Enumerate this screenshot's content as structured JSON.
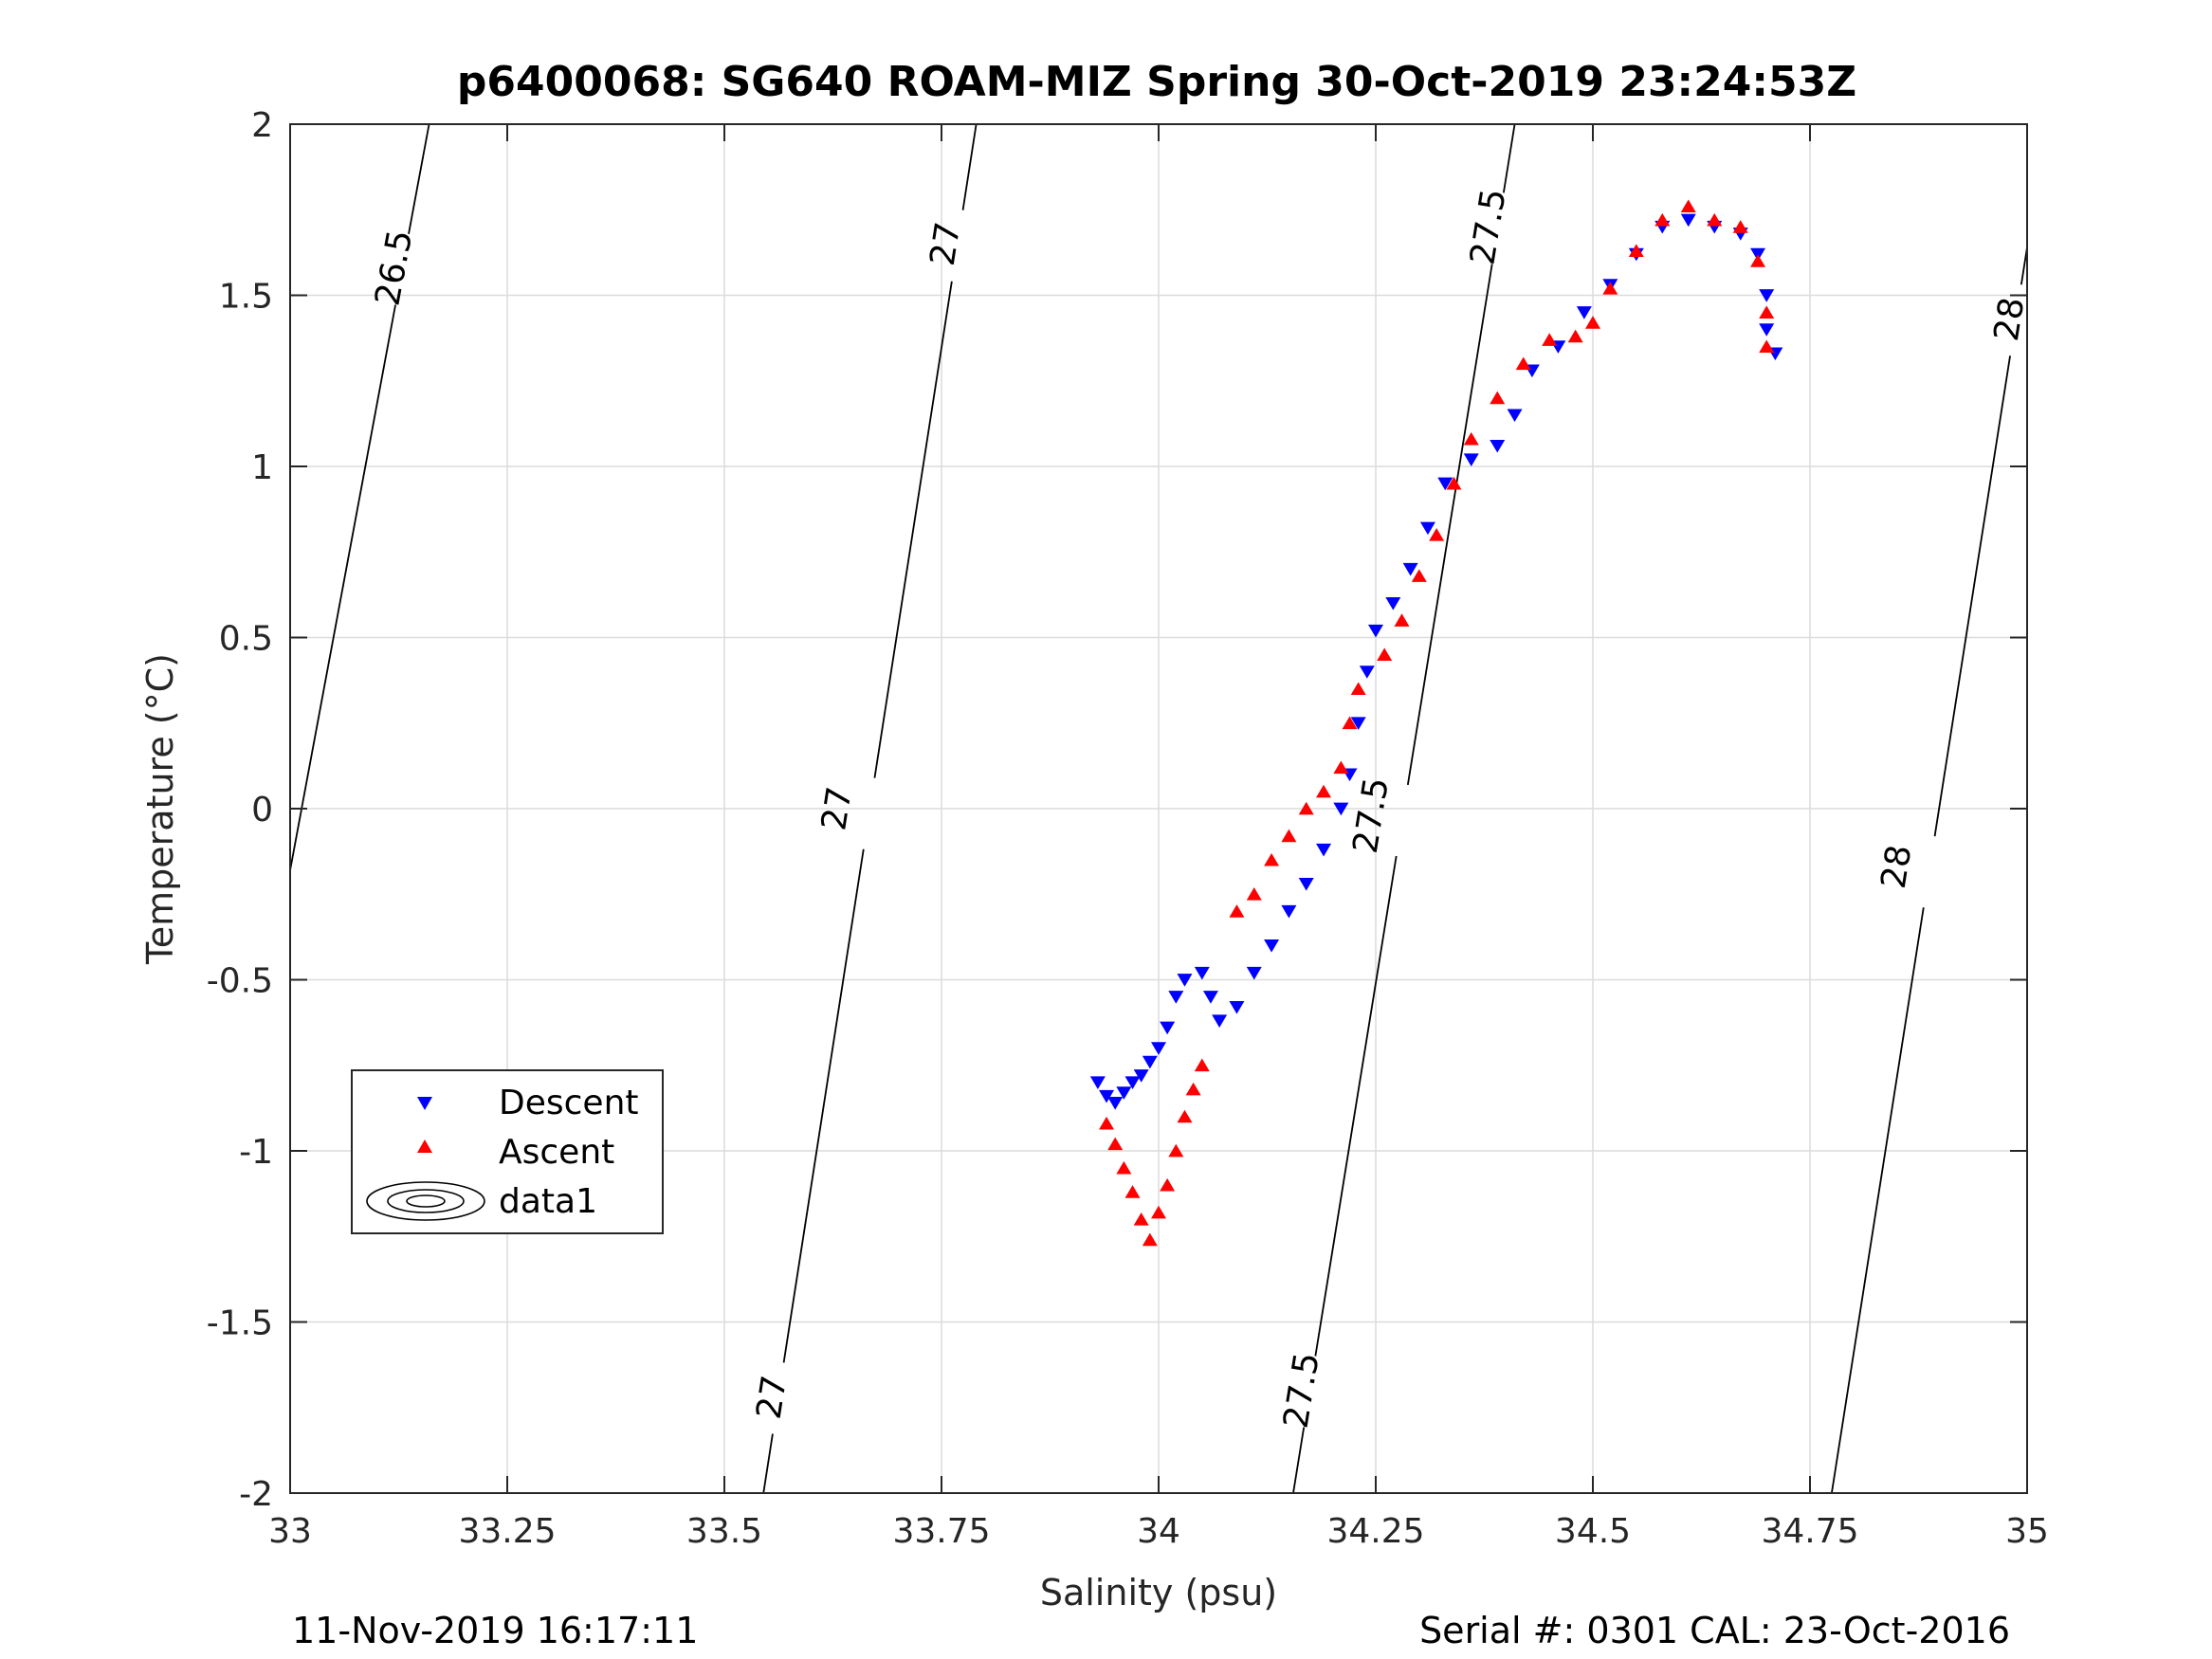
{
  "chart_data": {
    "type": "scatter",
    "title": "p6400068: SG640 ROAM-MIZ Spring 30-Oct-2019 23:24:53Z",
    "xlabel": "Salinity (psu)",
    "ylabel": "Temperature (°C)",
    "xlim": [
      33,
      35
    ],
    "ylim": [
      -2,
      2
    ],
    "xticks": [
      33,
      33.25,
      33.5,
      33.75,
      34,
      34.25,
      34.5,
      34.75,
      35
    ],
    "xtick_labels": [
      "33",
      "33.25",
      "33.5",
      "33.75",
      "34",
      "34.25",
      "34.5",
      "34.75",
      "35"
    ],
    "yticks": [
      -2,
      -1.5,
      -1,
      -0.5,
      0,
      0.5,
      1,
      1.5,
      2
    ],
    "ytick_labels": [
      "-2",
      "-1.5",
      "-1",
      "-0.5",
      "0",
      "0.5",
      "1",
      "1.5",
      "2"
    ],
    "grid": true,
    "legend_position": "lower-left",
    "series": [
      {
        "name": "Descent",
        "marker": "triangle-down",
        "color": "#0000ff",
        "points": [
          [
            33.93,
            -0.8
          ],
          [
            33.94,
            -0.84
          ],
          [
            33.95,
            -0.86
          ],
          [
            33.96,
            -0.83
          ],
          [
            33.97,
            -0.8
          ],
          [
            33.98,
            -0.78
          ],
          [
            33.99,
            -0.74
          ],
          [
            34.0,
            -0.7
          ],
          [
            34.01,
            -0.64
          ],
          [
            34.02,
            -0.55
          ],
          [
            34.03,
            -0.5
          ],
          [
            34.05,
            -0.48
          ],
          [
            34.06,
            -0.55
          ],
          [
            34.07,
            -0.62
          ],
          [
            34.09,
            -0.58
          ],
          [
            34.11,
            -0.48
          ],
          [
            34.13,
            -0.4
          ],
          [
            34.15,
            -0.3
          ],
          [
            34.17,
            -0.22
          ],
          [
            34.19,
            -0.12
          ],
          [
            34.21,
            0.0
          ],
          [
            34.22,
            0.1
          ],
          [
            34.23,
            0.25
          ],
          [
            34.24,
            0.4
          ],
          [
            34.25,
            0.52
          ],
          [
            34.27,
            0.6
          ],
          [
            34.29,
            0.7
          ],
          [
            34.31,
            0.82
          ],
          [
            34.33,
            0.95
          ],
          [
            34.36,
            1.02
          ],
          [
            34.39,
            1.06
          ],
          [
            34.41,
            1.15
          ],
          [
            34.43,
            1.28
          ],
          [
            34.46,
            1.35
          ],
          [
            34.49,
            1.45
          ],
          [
            34.52,
            1.53
          ],
          [
            34.55,
            1.62
          ],
          [
            34.58,
            1.7
          ],
          [
            34.61,
            1.72
          ],
          [
            34.64,
            1.7
          ],
          [
            34.67,
            1.68
          ],
          [
            34.69,
            1.62
          ],
          [
            34.7,
            1.5
          ],
          [
            34.7,
            1.4
          ],
          [
            34.71,
            1.33
          ]
        ]
      },
      {
        "name": "Ascent",
        "marker": "triangle-up",
        "color": "#ff0000",
        "points": [
          [
            33.94,
            -0.92
          ],
          [
            33.95,
            -0.98
          ],
          [
            33.96,
            -1.05
          ],
          [
            33.97,
            -1.12
          ],
          [
            33.98,
            -1.2
          ],
          [
            33.99,
            -1.26
          ],
          [
            34.0,
            -1.18
          ],
          [
            34.01,
            -1.1
          ],
          [
            34.02,
            -1.0
          ],
          [
            34.03,
            -0.9
          ],
          [
            34.04,
            -0.82
          ],
          [
            34.05,
            -0.75
          ],
          [
            34.09,
            -0.3
          ],
          [
            34.11,
            -0.25
          ],
          [
            34.13,
            -0.15
          ],
          [
            34.15,
            -0.08
          ],
          [
            34.17,
            0.0
          ],
          [
            34.19,
            0.05
          ],
          [
            34.21,
            0.12
          ],
          [
            34.22,
            0.25
          ],
          [
            34.23,
            0.35
          ],
          [
            34.26,
            0.45
          ],
          [
            34.28,
            0.55
          ],
          [
            34.3,
            0.68
          ],
          [
            34.32,
            0.8
          ],
          [
            34.34,
            0.95
          ],
          [
            34.36,
            1.08
          ],
          [
            34.39,
            1.2
          ],
          [
            34.42,
            1.3
          ],
          [
            34.45,
            1.37
          ],
          [
            34.48,
            1.38
          ],
          [
            34.5,
            1.42
          ],
          [
            34.52,
            1.52
          ],
          [
            34.55,
            1.63
          ],
          [
            34.58,
            1.72
          ],
          [
            34.61,
            1.76
          ],
          [
            34.64,
            1.72
          ],
          [
            34.67,
            1.7
          ],
          [
            34.69,
            1.6
          ],
          [
            34.7,
            1.45
          ],
          [
            34.7,
            1.35
          ]
        ]
      }
    ],
    "contours": [
      {
        "level": "26.5",
        "points": [
          [
            33,
            -0.18
          ],
          [
            33.16,
            2.0
          ]
        ],
        "labels": [
          [
            33.12,
            1.58
          ]
        ]
      },
      {
        "level": "27",
        "points": [
          [
            33.545,
            -2.0
          ],
          [
            33.79,
            2.0
          ]
        ],
        "labels": [
          [
            33.555,
            -1.72
          ],
          [
            33.63,
            0.0
          ],
          [
            33.755,
            1.65
          ]
        ]
      },
      {
        "level": "27.5",
        "points": [
          [
            34.155,
            -2.0
          ],
          [
            34.41,
            2.0
          ]
        ],
        "labels": [
          [
            34.165,
            -1.7
          ],
          [
            34.245,
            -0.02
          ],
          [
            34.38,
            1.7
          ]
        ]
      },
      {
        "level": "28",
        "points": [
          [
            34.775,
            -2.0
          ],
          [
            35.0,
            1.64
          ]
        ],
        "labels": [
          [
            34.85,
            -0.17
          ],
          [
            34.98,
            1.43
          ]
        ]
      }
    ],
    "legend": [
      {
        "label": "Descent"
      },
      {
        "label": "Ascent"
      },
      {
        "label": "data1"
      }
    ]
  },
  "footer": {
    "left": "11-Nov-2019 16:17:11",
    "right": "Serial #: 0301  CAL: 23-Oct-2016"
  }
}
